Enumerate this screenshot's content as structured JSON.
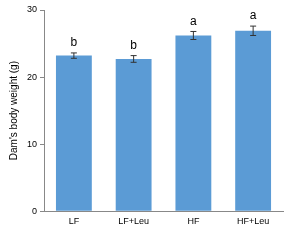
{
  "chart_data": {
    "type": "bar",
    "categories": [
      "LF",
      "LF+Leu",
      "HF",
      "HF+Leu"
    ],
    "values": [
      23.2,
      22.7,
      26.2,
      26.9
    ],
    "errors": [
      0.4,
      0.5,
      0.6,
      0.7
    ],
    "annotations": [
      "b",
      "b",
      "a",
      "a"
    ],
    "color": "#5b9bd5",
    "y_label": "Dam's body weight (g)",
    "ylim": [
      0,
      30
    ],
    "yticks": [
      0,
      10,
      20,
      30
    ],
    "grid": false
  }
}
